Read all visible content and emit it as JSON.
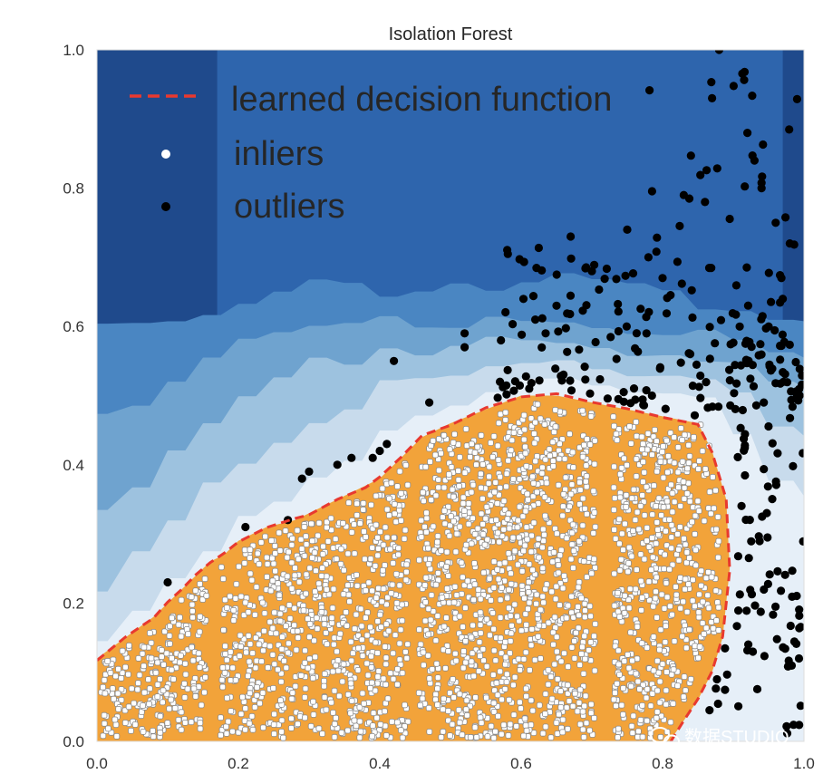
{
  "chart_data": {
    "type": "scatter",
    "title": "Isolation Forest",
    "xlabel": "",
    "ylabel": "",
    "xlim": [
      0.0,
      1.0
    ],
    "ylim": [
      0.0,
      1.0
    ],
    "xticks": [
      "0.0",
      "0.2",
      "0.4",
      "0.6",
      "0.8",
      "1.0"
    ],
    "yticks": [
      "0.0",
      "0.2",
      "0.4",
      "0.6",
      "0.8",
      "1.0"
    ],
    "xtick_values": [
      0.0,
      0.2,
      0.4,
      0.6,
      0.8,
      1.0
    ],
    "ytick_values": [
      0.0,
      0.2,
      0.4,
      0.6,
      0.8,
      1.0
    ],
    "grid": false,
    "legend_position": "top-left",
    "legend": [
      {
        "label": "learned decision function",
        "marker": "dashed-line",
        "color": "#e8392f"
      },
      {
        "label": "inliers",
        "marker": "dot",
        "color": "#ffffff"
      },
      {
        "label": "outliers",
        "marker": "dot",
        "color": "#000000"
      }
    ],
    "background_levels": [
      {
        "name": "level-1",
        "color": "#1f4a8c"
      },
      {
        "name": "level-2",
        "color": "#2e65ad"
      },
      {
        "name": "level-3",
        "color": "#4a86c2"
      },
      {
        "name": "level-4",
        "color": "#6fa3cf"
      },
      {
        "name": "level-5",
        "color": "#9dc2df"
      },
      {
        "name": "level-6",
        "color": "#c8dbec"
      },
      {
        "name": "level-7",
        "color": "#e6eff8"
      },
      {
        "name": "inlier-region",
        "color": "#f2a33a"
      }
    ],
    "decision_boundary": {
      "x": [
        0.0,
        0.04,
        0.08,
        0.1,
        0.12,
        0.14,
        0.16,
        0.18,
        0.2,
        0.24,
        0.28,
        0.3,
        0.34,
        0.38,
        0.4,
        0.43,
        0.46,
        0.5,
        0.55,
        0.6,
        0.65,
        0.7,
        0.75,
        0.8,
        0.85,
        0.87,
        0.89,
        0.895,
        0.885,
        0.87,
        0.85,
        0.83,
        0.81
      ],
      "y": [
        0.12,
        0.15,
        0.18,
        0.2,
        0.22,
        0.24,
        0.26,
        0.27,
        0.29,
        0.31,
        0.32,
        0.33,
        0.35,
        0.37,
        0.38,
        0.41,
        0.44,
        0.46,
        0.48,
        0.5,
        0.5,
        0.49,
        0.48,
        0.47,
        0.46,
        0.42,
        0.35,
        0.25,
        0.15,
        0.1,
        0.06,
        0.03,
        0.0
      ]
    },
    "inliers": {
      "description": "uniform density below decision boundary, x 0-0.87, y 0-0.5",
      "count_estimate": 3500
    },
    "outliers": {
      "count_estimate": 320,
      "sample_points": [
        [
          0.1,
          0.23
        ],
        [
          0.21,
          0.31
        ],
        [
          0.27,
          0.32
        ],
        [
          0.29,
          0.38
        ],
        [
          0.3,
          0.39
        ],
        [
          0.34,
          0.4
        ],
        [
          0.36,
          0.41
        ],
        [
          0.39,
          0.41
        ],
        [
          0.4,
          0.42
        ],
        [
          0.41,
          0.43
        ],
        [
          0.42,
          0.55
        ],
        [
          0.47,
          0.49
        ],
        [
          0.52,
          0.59
        ],
        [
          0.52,
          0.57
        ],
        [
          0.57,
          0.52
        ],
        [
          0.62,
          0.61
        ],
        [
          0.65,
          0.63
        ],
        [
          0.67,
          0.73
        ],
        [
          0.7,
          0.68
        ],
        [
          0.75,
          0.74
        ],
        [
          0.78,
          0.7
        ],
        [
          0.8,
          0.67
        ],
        [
          0.83,
          0.79
        ],
        [
          0.86,
          0.78
        ],
        [
          0.87,
          0.93
        ],
        [
          0.92,
          0.88
        ],
        [
          0.93,
          0.84
        ],
        [
          0.88,
          1.0
        ],
        [
          0.94,
          0.8
        ],
        [
          0.96,
          0.75
        ],
        [
          0.98,
          0.72
        ],
        [
          0.97,
          0.64
        ],
        [
          0.95,
          0.6
        ],
        [
          0.99,
          0.5
        ]
      ]
    }
  },
  "watermark": {
    "text": "数据STUDIO"
  }
}
